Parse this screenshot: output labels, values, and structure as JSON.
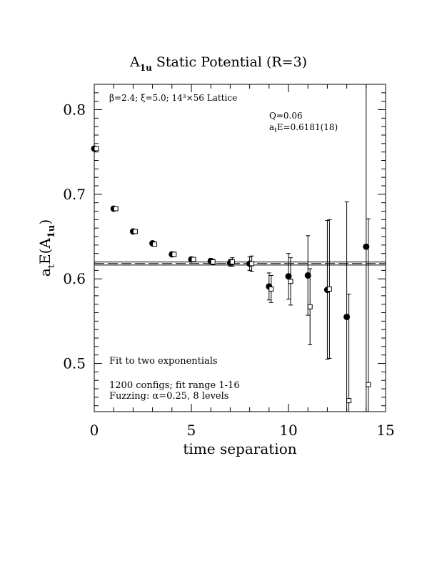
{
  "chart_data": {
    "type": "scatter",
    "title": "A",
    "title_sub": "1u",
    "title_rest": " Static Potential (R=3)",
    "xlabel": "time separation",
    "ylabel": "a",
    "ylabel_sub1": "t",
    "ylabel_mid": "E(A",
    "ylabel_sub2": "1u",
    "ylabel_end": ")",
    "xlim": [
      0,
      15
    ],
    "ylim": [
      0.443,
      0.83
    ],
    "x_ticks": [
      {
        "value": 0,
        "label": "0"
      },
      {
        "value": 5,
        "label": "5"
      },
      {
        "value": 10,
        "label": "10"
      },
      {
        "value": 15,
        "label": "15"
      }
    ],
    "y_ticks": [
      {
        "value": 0.5,
        "label": "0.5"
      },
      {
        "value": 0.6,
        "label": "0.6"
      },
      {
        "value": 0.7,
        "label": "0.7"
      },
      {
        "value": 0.8,
        "label": "0.8"
      }
    ],
    "annotations": {
      "lattice": "β=2.4; ξ=5.0; 14³×56 Lattice",
      "q": "Q=0.06",
      "energy_pre": "a",
      "energy_sub": "t",
      "energy_post": "E=0.6181(18)",
      "fit_label": "Fit to two exponentials",
      "configs": "1200 configs; fit range 1-16",
      "fuzzing": "Fuzzing: α=0.25, 8 levels"
    },
    "fit": {
      "value": 0.6181,
      "error": 0.0018,
      "x_range": [
        0,
        15
      ]
    },
    "series": [
      {
        "marker": "filled-circle",
        "points": [
          {
            "x": 0,
            "y": 0.754,
            "err": 0.002
          },
          {
            "x": 1,
            "y": 0.683,
            "err": 0.002
          },
          {
            "x": 2,
            "y": 0.656,
            "err": 0.002
          },
          {
            "x": 3,
            "y": 0.642,
            "err": 0.002
          },
          {
            "x": 4,
            "y": 0.629,
            "err": 0.002
          },
          {
            "x": 5,
            "y": 0.623,
            "err": 0.002
          },
          {
            "x": 6,
            "y": 0.621,
            "err": 0.003
          },
          {
            "x": 7,
            "y": 0.619,
            "err": 0.004
          },
          {
            "x": 8,
            "y": 0.618,
            "err": 0.008
          },
          {
            "x": 9,
            "y": 0.591,
            "err": 0.016
          },
          {
            "x": 10,
            "y": 0.603,
            "err": 0.027
          },
          {
            "x": 11,
            "y": 0.604,
            "err": 0.047
          },
          {
            "x": 12,
            "y": 0.587,
            "err": 0.082
          },
          {
            "x": 13,
            "y": 0.555,
            "err": 0.136
          },
          {
            "x": 14,
            "y": 0.638,
            "err": 0.23
          }
        ]
      },
      {
        "marker": "open-square",
        "points": [
          {
            "x": 0,
            "y": 0.754,
            "err": 0.002
          },
          {
            "x": 1,
            "y": 0.683,
            "err": 0.002
          },
          {
            "x": 2,
            "y": 0.656,
            "err": 0.002
          },
          {
            "x": 3,
            "y": 0.641,
            "err": 0.002
          },
          {
            "x": 4,
            "y": 0.629,
            "err": 0.002
          },
          {
            "x": 5,
            "y": 0.623,
            "err": 0.002
          },
          {
            "x": 6,
            "y": 0.62,
            "err": 0.003
          },
          {
            "x": 7,
            "y": 0.62,
            "err": 0.005
          },
          {
            "x": 8,
            "y": 0.618,
            "err": 0.009
          },
          {
            "x": 9,
            "y": 0.588,
            "err": 0.016
          },
          {
            "x": 10,
            "y": 0.597,
            "err": 0.028
          },
          {
            "x": 11,
            "y": 0.567,
            "err": 0.045
          },
          {
            "x": 12,
            "y": 0.588,
            "err": 0.082
          },
          {
            "x": 13,
            "y": 0.456,
            "err": 0.126
          },
          {
            "x": 14,
            "y": 0.475,
            "err": 0.196
          }
        ]
      }
    ]
  }
}
